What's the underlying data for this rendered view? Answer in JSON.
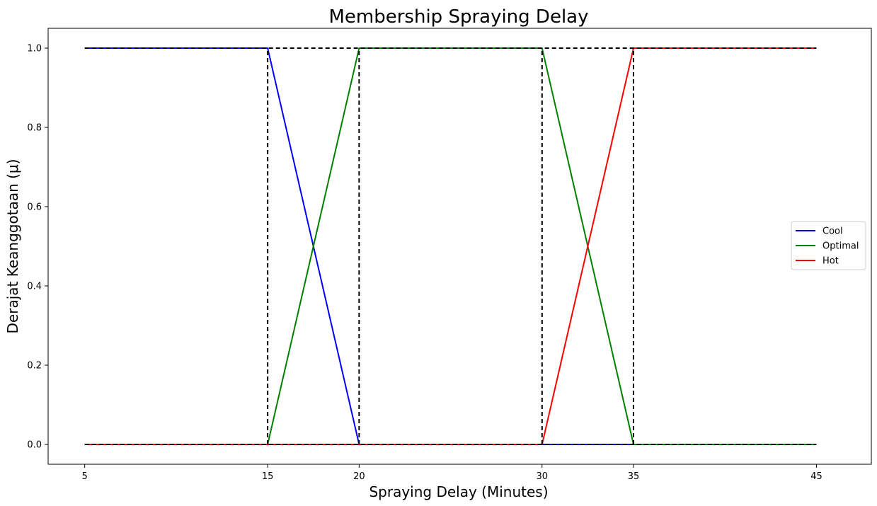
{
  "chart_data": {
    "type": "line",
    "title": "Membership Spraying Delay",
    "xlabel": "Spraying Delay (Minutes)",
    "ylabel": "Derajat Keanggotaan (μ)",
    "xlim": [
      3,
      48
    ],
    "ylim": [
      -0.05,
      1.05
    ],
    "xticks": [
      5,
      15,
      20,
      30,
      35,
      45
    ],
    "yticks": [
      0.0,
      0.2,
      0.4,
      0.6,
      0.8,
      1.0
    ],
    "ytick_labels": [
      "0.0",
      "0.2",
      "0.4",
      "0.6",
      "0.8",
      "1.0"
    ],
    "grid": false,
    "legend_position": "center-right",
    "series": [
      {
        "name": "Cool",
        "color": "#0000ff",
        "x": [
          5,
          15,
          20,
          45
        ],
        "y": [
          1,
          1,
          0,
          0
        ]
      },
      {
        "name": "Optimal",
        "color": "#008000",
        "x": [
          5,
          15,
          20,
          30,
          35,
          45
        ],
        "y": [
          0,
          0,
          1,
          1,
          0,
          0
        ]
      },
      {
        "name": "Hot",
        "color": "#ff0000",
        "x": [
          5,
          30,
          35,
          45
        ],
        "y": [
          0,
          0,
          1,
          1
        ]
      }
    ],
    "reference_lines": {
      "color": "#000000",
      "style": "dashed",
      "vertical_at": [
        15,
        20,
        30,
        35
      ],
      "horizontal_at": [
        0,
        1
      ],
      "x_span": [
        5,
        45
      ]
    }
  }
}
